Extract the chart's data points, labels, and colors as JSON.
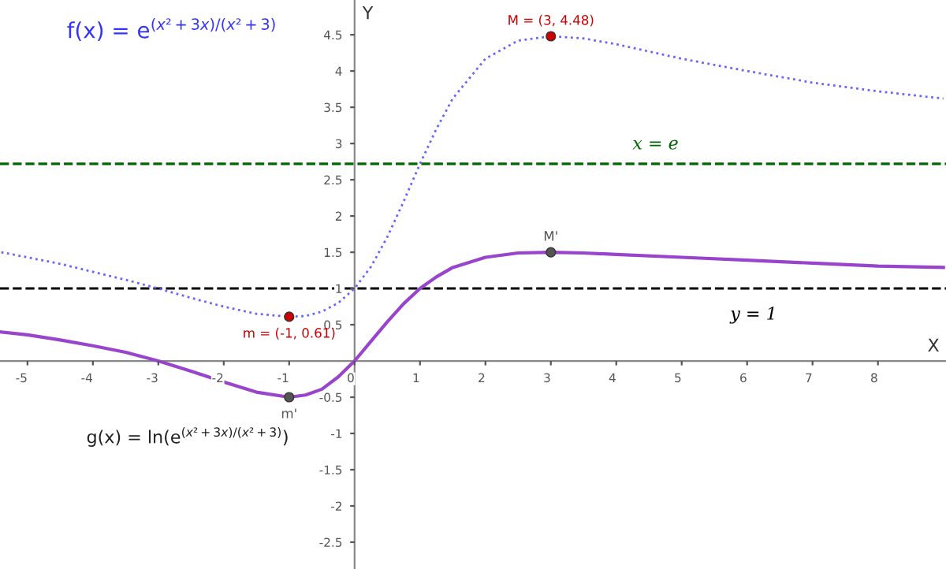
{
  "chart_data": {
    "type": "line",
    "xlabel": "X",
    "ylabel": "Y",
    "xlim": [
      -5.42,
      9.04
    ],
    "ylim": [
      -2.87,
      4.98
    ],
    "xticks": [
      -5,
      -4,
      -3,
      -2,
      -1,
      0,
      1,
      2,
      3,
      4,
      5,
      6,
      7,
      8
    ],
    "yticks": [
      -2.5,
      -2,
      -1.5,
      -1,
      -0.5,
      0.5,
      1,
      1.5,
      2,
      2.5,
      3,
      3.5,
      4,
      4.5
    ],
    "grid": false,
    "series": [
      {
        "line_style": "dotted",
        "color": "#6666ff",
        "x": [
          -5.4,
          -5,
          -4.5,
          -4,
          -3.5,
          -3,
          -2.5,
          -2,
          -1.5,
          -1,
          -0.75,
          -0.5,
          -0.25,
          0,
          0.25,
          0.5,
          0.75,
          1,
          1.25,
          1.5,
          2,
          2.5,
          3,
          3.5,
          4,
          5,
          6,
          7,
          8,
          9
        ],
        "values": [
          1.5,
          1.43,
          1.34,
          1.23,
          1.12,
          1,
          0.87,
          0.75,
          0.65,
          0.61,
          0.62,
          0.68,
          0.8,
          1,
          1.3,
          1.71,
          2.2,
          2.72,
          3.2,
          3.62,
          4.17,
          4.42,
          4.48,
          4.45,
          4.37,
          4.17,
          4.0,
          3.84,
          3.72,
          3.62
        ]
      },
      {
        "line_style": "solid",
        "color": "#9944cc",
        "x": [
          -5.4,
          -5,
          -4.5,
          -4,
          -3.5,
          -3,
          -2.5,
          -2,
          -1.5,
          -1,
          -0.75,
          -0.5,
          -0.25,
          0,
          0.25,
          0.5,
          0.75,
          1,
          1.25,
          1.5,
          2,
          2.5,
          3,
          3.5,
          4,
          5,
          6,
          7,
          8,
          9
        ],
        "values": [
          0.4,
          0.36,
          0.29,
          0.21,
          0.12,
          0,
          -0.14,
          -0.29,
          -0.43,
          -0.5,
          -0.47,
          -0.39,
          -0.22,
          0,
          0.27,
          0.54,
          0.79,
          1,
          1.16,
          1.29,
          1.43,
          1.49,
          1.5,
          1.49,
          1.47,
          1.43,
          1.39,
          1.35,
          1.31,
          1.29
        ]
      },
      {
        "type": "scatter",
        "marker": "circle",
        "x": [
          3,
          -1,
          3,
          -1
        ],
        "values": [
          4.48,
          0.61,
          1.5,
          -0.5
        ],
        "colors": [
          "#cc0000",
          "#cc0000",
          "#555555",
          "#555555"
        ],
        "value_labels": [
          "M = (3, 4.48)",
          "m = (-1, 0.61)",
          "M'",
          "m'"
        ]
      }
    ],
    "ref_lines": [
      {
        "axis": "y",
        "value": 2.72,
        "label": "x = e",
        "color": "#006600",
        "line_style": "dashed"
      },
      {
        "axis": "y",
        "value": 1,
        "label": "y = 1",
        "color": "#000000",
        "line_style": "dashed"
      }
    ],
    "annotations": [
      "f(x) = e$^{(x²+3x)/(x²+3)}$",
      "g(x) = ln(e$^{(x²+3x)/(x²+3)}$)"
    ]
  }
}
